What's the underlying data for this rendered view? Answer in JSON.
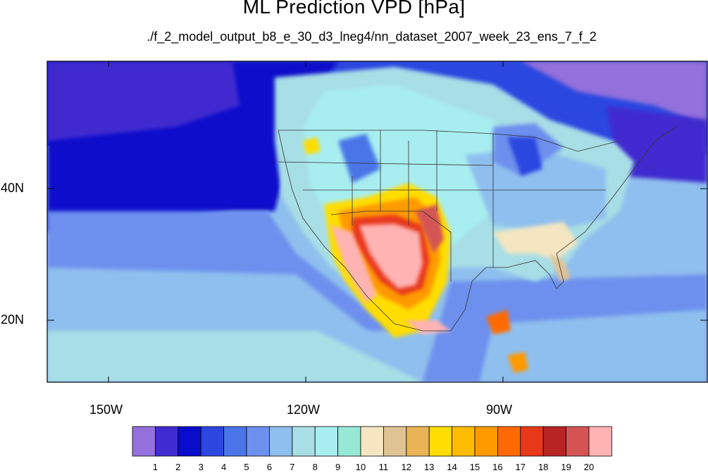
{
  "title": "ML Prediction VPD [hPa]",
  "subtitle": "./f_2_model_output_b8_e_30_d3_lneg4/nn_dataset_2007_week_23_ens_7_f_2",
  "axes": {
    "x_ticks": [
      "150W",
      "120W",
      "90W"
    ],
    "y_ticks": [
      "40N",
      "20N"
    ]
  },
  "colorbar": {
    "labels": [
      "1",
      "2",
      "3",
      "4",
      "5",
      "6",
      "7",
      "8",
      "9",
      "10",
      "11",
      "12",
      "13",
      "14",
      "15",
      "16",
      "17",
      "18",
      "19",
      "20"
    ],
    "colors": [
      "#9370db",
      "#3f2bcf",
      "#0a0ccb",
      "#2b47e0",
      "#4a74e8",
      "#6d90ee",
      "#8fbfee",
      "#a8dee6",
      "#a8eef0",
      "#98e8d6",
      "#f5e6c1",
      "#e0c394",
      "#e8b455",
      "#ffdd00",
      "#ffbb00",
      "#ff9a00",
      "#ff6a00",
      "#e8381a",
      "#b82424",
      "#d45454",
      "#ffb3b3"
    ]
  }
}
